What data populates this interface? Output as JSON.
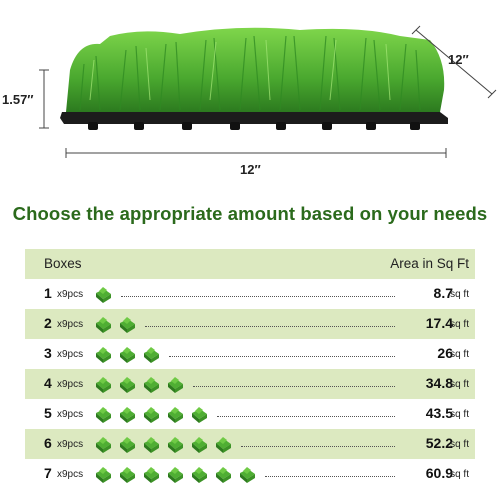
{
  "dimensions": {
    "height": "1.57″",
    "depth": "12″",
    "width": "12″"
  },
  "heading": "Choose the appropriate amount based on your needs",
  "table": {
    "header": {
      "boxes": "Boxes",
      "area": "Area in Sq Ft"
    },
    "rows": [
      {
        "boxes": "1",
        "pcs": "x9pcs",
        "tiles": 1,
        "area": "8.7",
        "unit": "sq ft"
      },
      {
        "boxes": "2",
        "pcs": "x9pcs",
        "tiles": 2,
        "area": "17.4",
        "unit": "sq ft"
      },
      {
        "boxes": "3",
        "pcs": "x9pcs",
        "tiles": 3,
        "area": "26",
        "unit": "sq ft"
      },
      {
        "boxes": "4",
        "pcs": "x9pcs",
        "tiles": 4,
        "area": "34.8",
        "unit": "sq ft"
      },
      {
        "boxes": "5",
        "pcs": "x9pcs",
        "tiles": 5,
        "area": "43.5",
        "unit": "sq ft"
      },
      {
        "boxes": "6",
        "pcs": "x9pcs",
        "tiles": 6,
        "area": "52.2",
        "unit": "sq ft"
      },
      {
        "boxes": "7",
        "pcs": "x9pcs",
        "tiles": 7,
        "area": "60.9",
        "unit": "sq ft"
      }
    ]
  },
  "colors": {
    "heading": "#2b6a1c",
    "row_shade": "#dce9c0",
    "grass_light": "#5cbf3a",
    "grass_dark": "#2f8a22"
  }
}
